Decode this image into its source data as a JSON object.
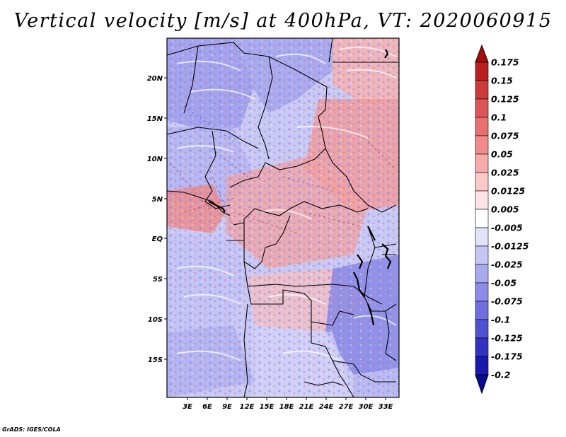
{
  "title": "Vertical velocity [m/s] at 400hPa, VT: 2020060915",
  "credit": "GrADS: IGES/COLA",
  "map": {
    "variable": "Vertical velocity",
    "units": "m/s",
    "level": "400hPa",
    "valid_time": "2020060915",
    "lat_labels": [
      "20N",
      "15N",
      "10N",
      "5N",
      "EQ",
      "5S",
      "10S",
      "15S"
    ],
    "lon_labels": [
      "3E",
      "6E",
      "9E",
      "12E",
      "15E",
      "18E",
      "21E",
      "24E",
      "27E",
      "30E",
      "33E"
    ],
    "region": "Central Africa"
  },
  "colorbar": {
    "labels": [
      "0.175",
      "0.15",
      "0.125",
      "0.1",
      "0.075",
      "0.05",
      "0.025",
      "0.0125",
      "0.005",
      "-0.005",
      "-0.0125",
      "-0.025",
      "-0.05",
      "-0.075",
      "-0.1",
      "-0.125",
      "-0.175",
      "-0.2"
    ],
    "colors": [
      "#a00e0e",
      "#b82020",
      "#cd3a3a",
      "#dd5656",
      "#e87070",
      "#f28c8c",
      "#f7aaaa",
      "#fcc8c8",
      "#fee4e4",
      "#ffffff",
      "#e2e2fb",
      "#c6c6f6",
      "#a9a9f0",
      "#8c8ce8",
      "#6e6edf",
      "#5050d2",
      "#3232c2",
      "#1a1aaa",
      "#0a0a90"
    ]
  }
}
